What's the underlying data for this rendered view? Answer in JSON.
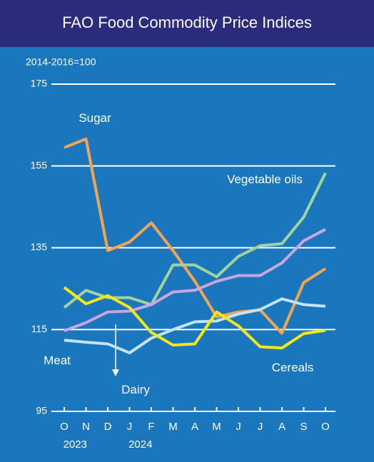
{
  "chart_data": {
    "type": "line",
    "title": "FAO Food Commodity Price Indices",
    "subtitle": "2014-2016=100",
    "categories": [
      "O",
      "N",
      "D",
      "J",
      "F",
      "M",
      "A",
      "M",
      "J",
      "J",
      "A",
      "S",
      "O"
    ],
    "years": [
      "2023",
      "2024"
    ],
    "ylim": [
      95,
      175
    ],
    "yticks": [
      95,
      115,
      135,
      155,
      175
    ],
    "grid": true,
    "series": [
      {
        "name": "Sugar",
        "color": "#f5a551",
        "values": [
          159.5,
          161.6,
          134.3,
          136.4,
          141.1,
          134.3,
          126.8,
          118.1,
          119.3,
          119.8,
          114.1,
          126.5,
          129.9
        ]
      },
      {
        "name": "Vegetable oils",
        "color": "#a3d39c",
        "values": [
          120.4,
          124.6,
          122.8,
          122.8,
          121.1,
          130.8,
          130.8,
          127.9,
          132.9,
          135.5,
          136.0,
          142.5,
          153.3
        ]
      },
      {
        "name": "Meat",
        "color": "#c2e4f6",
        "values": [
          112.4,
          111.9,
          111.5,
          109.3,
          112.9,
          115.0,
          116.9,
          117.1,
          118.8,
          119.9,
          122.5,
          121.1,
          120.7
        ]
      },
      {
        "name": "Dairy",
        "color": "#c8a6df",
        "values": [
          114.7,
          116.7,
          119.3,
          119.5,
          121.1,
          124.2,
          124.6,
          126.8,
          128.2,
          128.2,
          131.3,
          136.7,
          139.5
        ]
      },
      {
        "name": "Cereals",
        "color": "#f7e712",
        "values": [
          125.3,
          121.3,
          123.3,
          120.4,
          114.3,
          111.2,
          111.5,
          119.3,
          115.9,
          110.8,
          110.5,
          114.0,
          114.8
        ]
      }
    ]
  }
}
